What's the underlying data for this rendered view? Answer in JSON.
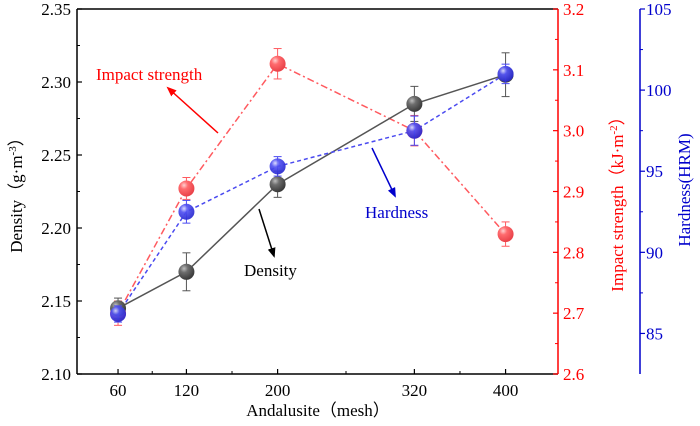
{
  "chart_data": {
    "type": "line",
    "title": "",
    "xlabel": "Andalusite（mesh）",
    "x": [
      60,
      120,
      200,
      320,
      400
    ],
    "xticks": [
      "60",
      "120",
      "200",
      "320",
      "400"
    ],
    "xlim": [
      24,
      446
    ],
    "axes": {
      "left": {
        "label": "Density（g·m",
        "label_sup": "-3",
        "label_close": "）",
        "ylim": [
          2.1,
          2.35
        ],
        "ticks": [
          "2.10",
          "2.15",
          "2.20",
          "2.25",
          "2.30",
          "2.35"
        ],
        "color": "#000000"
      },
      "right1": {
        "label": "Impact strength（kJ·m",
        "label_sup": "-2",
        "label_close": "）",
        "ylim": [
          2.6,
          3.2
        ],
        "ticks": [
          "2.6",
          "2.7",
          "2.8",
          "2.9",
          "3.0",
          "3.1",
          "3.2"
        ],
        "color": "#ff0000"
      },
      "right2": {
        "label": "Hardness(HRM)",
        "ylim": [
          82.5,
          105
        ],
        "ticks": [
          "85",
          "90",
          "95",
          "100",
          "105"
        ],
        "color": "#0000cc"
      }
    },
    "series": [
      {
        "name": "Density",
        "axis": "left",
        "values": [
          2.145,
          2.17,
          2.23,
          2.285,
          2.305
        ],
        "errors": [
          0.007,
          0.013,
          0.009,
          0.012,
          0.015
        ],
        "color": "#555555",
        "line_style": "solid"
      },
      {
        "name": "Impact strength",
        "axis": "right1",
        "values": [
          2.7,
          2.905,
          3.11,
          3.0,
          2.83
        ],
        "errors": [
          0.02,
          0.018,
          0.025,
          0.025,
          0.02
        ],
        "color": "#ff5a5f",
        "line_style": "dash-dot"
      },
      {
        "name": "Hardness",
        "axis": "right2",
        "values": [
          86.2,
          92.5,
          95.3,
          97.5,
          101.0
        ],
        "errors": [
          0.5,
          0.7,
          0.6,
          0.9,
          0.6
        ],
        "color": "#4a4af0",
        "line_style": "dashed"
      }
    ],
    "annotations": [
      {
        "text": "Impact strength",
        "color": "#ff0000"
      },
      {
        "text": "Density",
        "color": "#000000"
      },
      {
        "text": "Hardness",
        "color": "#0000cc"
      }
    ],
    "grid": false,
    "legend": "none"
  }
}
